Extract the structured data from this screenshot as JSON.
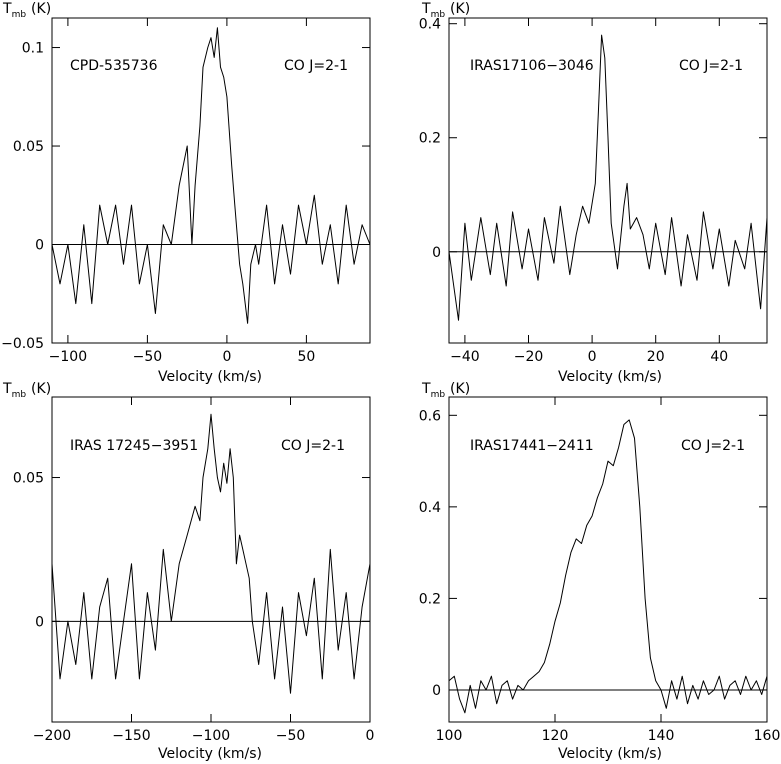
{
  "chart_data": [
    {
      "type": "line",
      "source": "CPD-535736",
      "line": "CO J=2-1",
      "xlabel": "Velocity (km/s)",
      "ylabel": "T",
      "ylabel_sub": "mb",
      "ylabel_unit": "(K)",
      "xlim": [
        -110,
        90
      ],
      "ylim": [
        -0.05,
        0.115
      ],
      "xticks": [
        -100,
        -50,
        0,
        50
      ],
      "yticks": [
        -0.05,
        0,
        0.05,
        0.1
      ],
      "ytick_labels": [
        "−0.05",
        "0",
        "0.05",
        "0.1"
      ],
      "baseline": 0,
      "x": [
        -110,
        -105,
        -100,
        -95,
        -90,
        -85,
        -80,
        -75,
        -70,
        -65,
        -60,
        -55,
        -50,
        -45,
        -40,
        -35,
        -30,
        -25,
        -22,
        -20,
        -17,
        -15,
        -12,
        -10,
        -8,
        -6,
        -4,
        -2,
        0,
        3,
        5,
        8,
        10,
        13,
        15,
        18,
        20,
        25,
        30,
        35,
        40,
        45,
        50,
        55,
        60,
        65,
        70,
        75,
        80,
        85,
        90
      ],
      "y": [
        0.0,
        -0.02,
        0.0,
        -0.03,
        0.01,
        -0.03,
        0.02,
        0.0,
        0.02,
        -0.01,
        0.02,
        -0.02,
        0.0,
        -0.035,
        0.01,
        0.0,
        0.03,
        0.05,
        0.0,
        0.03,
        0.06,
        0.09,
        0.1,
        0.105,
        0.095,
        0.11,
        0.09,
        0.085,
        0.075,
        0.04,
        0.02,
        -0.01,
        -0.02,
        -0.04,
        -0.01,
        0.0,
        -0.01,
        0.02,
        -0.02,
        0.01,
        -0.015,
        0.02,
        0.0,
        0.025,
        -0.01,
        0.01,
        -0.02,
        0.02,
        -0.01,
        0.01,
        0.0
      ]
    },
    {
      "type": "line",
      "source": "IRAS17106−3046",
      "line": "CO J=2-1",
      "xlabel": "Velocity (km/s)",
      "ylabel": "T",
      "ylabel_sub": "mb",
      "ylabel_unit": "(K)",
      "xlim": [
        -45,
        55
      ],
      "ylim": [
        -0.16,
        0.41
      ],
      "xticks": [
        -40,
        -20,
        0,
        20,
        40
      ],
      "yticks": [
        0,
        0.2,
        0.4
      ],
      "ytick_labels": [
        "0",
        "0.2",
        "0.4"
      ],
      "baseline": 0,
      "x": [
        -45,
        -42,
        -40,
        -38,
        -35,
        -32,
        -30,
        -27,
        -25,
        -22,
        -20,
        -17,
        -15,
        -12,
        -10,
        -7,
        -5,
        -3,
        -1,
        1,
        2,
        3,
        4,
        5,
        6,
        8,
        10,
        11,
        12,
        14,
        16,
        18,
        20,
        23,
        25,
        28,
        30,
        33,
        35,
        38,
        40,
        43,
        45,
        48,
        50,
        53,
        55
      ],
      "y": [
        0.0,
        -0.12,
        0.05,
        -0.05,
        0.06,
        -0.04,
        0.05,
        -0.06,
        0.07,
        -0.03,
        0.04,
        -0.05,
        0.06,
        -0.02,
        0.08,
        -0.04,
        0.03,
        0.08,
        0.05,
        0.12,
        0.25,
        0.38,
        0.34,
        0.2,
        0.05,
        -0.03,
        0.08,
        0.12,
        0.04,
        0.06,
        0.03,
        -0.03,
        0.05,
        -0.04,
        0.06,
        -0.06,
        0.03,
        -0.05,
        0.07,
        -0.03,
        0.04,
        -0.06,
        0.02,
        -0.03,
        0.05,
        -0.1,
        0.06
      ]
    },
    {
      "type": "line",
      "source": "IRAS 17245−3951",
      "line": "CO J=2-1",
      "xlabel": "Velocity (km/s)",
      "ylabel": "T",
      "ylabel_sub": "mb",
      "ylabel_unit": "(K)",
      "xlim": [
        -200,
        0
      ],
      "ylim": [
        -0.035,
        0.078
      ],
      "xticks": [
        -200,
        -150,
        -100,
        -50,
        0
      ],
      "yticks": [
        0,
        0.05
      ],
      "ytick_labels": [
        "0",
        "0.05"
      ],
      "baseline": 0,
      "x": [
        -200,
        -195,
        -190,
        -185,
        -180,
        -175,
        -170,
        -165,
        -160,
        -155,
        -150,
        -145,
        -140,
        -135,
        -130,
        -125,
        -120,
        -115,
        -110,
        -107,
        -105,
        -102,
        -100,
        -98,
        -96,
        -94,
        -92,
        -90,
        -88,
        -86,
        -84,
        -82,
        -80,
        -78,
        -76,
        -74,
        -70,
        -65,
        -60,
        -55,
        -50,
        -45,
        -40,
        -35,
        -30,
        -25,
        -20,
        -15,
        -10,
        -5,
        0
      ],
      "y": [
        0.02,
        -0.02,
        0.0,
        -0.015,
        0.01,
        -0.02,
        0.005,
        0.015,
        -0.02,
        0.0,
        0.02,
        -0.02,
        0.01,
        -0.01,
        0.025,
        0.0,
        0.02,
        0.03,
        0.04,
        0.035,
        0.05,
        0.06,
        0.072,
        0.06,
        0.05,
        0.045,
        0.055,
        0.048,
        0.06,
        0.05,
        0.02,
        0.03,
        0.025,
        0.02,
        0.015,
        0.0,
        -0.015,
        0.01,
        -0.02,
        0.005,
        -0.025,
        0.01,
        -0.005,
        0.015,
        -0.02,
        0.025,
        -0.01,
        0.01,
        -0.02,
        0.005,
        0.02
      ]
    },
    {
      "type": "line",
      "source": "IRAS17441−2411",
      "line": "CO J=2-1",
      "xlabel": "Velocity (km/s)",
      "ylabel": "T",
      "ylabel_sub": "mb",
      "ylabel_unit": "(K)",
      "xlim": [
        100,
        160
      ],
      "ylim": [
        -0.07,
        0.64
      ],
      "xticks": [
        100,
        120,
        140,
        160
      ],
      "yticks": [
        0,
        0.2,
        0.4,
        0.6
      ],
      "ytick_labels": [
        "0",
        "0.2",
        "0.4",
        "0.6"
      ],
      "baseline": 0,
      "x": [
        100,
        101,
        102,
        103,
        104,
        105,
        106,
        107,
        108,
        109,
        110,
        111,
        112,
        113,
        114,
        115,
        116,
        117,
        118,
        119,
        120,
        121,
        122,
        123,
        124,
        125,
        126,
        127,
        128,
        129,
        130,
        131,
        132,
        133,
        134,
        135,
        136,
        137,
        138,
        139,
        140,
        141,
        142,
        143,
        144,
        145,
        146,
        147,
        148,
        149,
        150,
        151,
        152,
        153,
        154,
        155,
        156,
        157,
        158,
        159,
        160
      ],
      "y": [
        0.02,
        0.03,
        -0.02,
        -0.05,
        0.01,
        -0.04,
        0.02,
        0.0,
        0.03,
        -0.03,
        0.01,
        0.02,
        -0.02,
        0.01,
        0.0,
        0.02,
        0.03,
        0.04,
        0.06,
        0.1,
        0.15,
        0.19,
        0.25,
        0.3,
        0.33,
        0.32,
        0.36,
        0.38,
        0.42,
        0.45,
        0.5,
        0.49,
        0.53,
        0.58,
        0.59,
        0.55,
        0.4,
        0.2,
        0.07,
        0.02,
        0.0,
        -0.04,
        0.02,
        -0.02,
        0.03,
        -0.03,
        0.01,
        -0.02,
        0.02,
        -0.01,
        0.0,
        0.03,
        -0.02,
        0.01,
        0.02,
        -0.01,
        0.03,
        0.0,
        0.02,
        -0.01,
        0.03
      ]
    }
  ]
}
